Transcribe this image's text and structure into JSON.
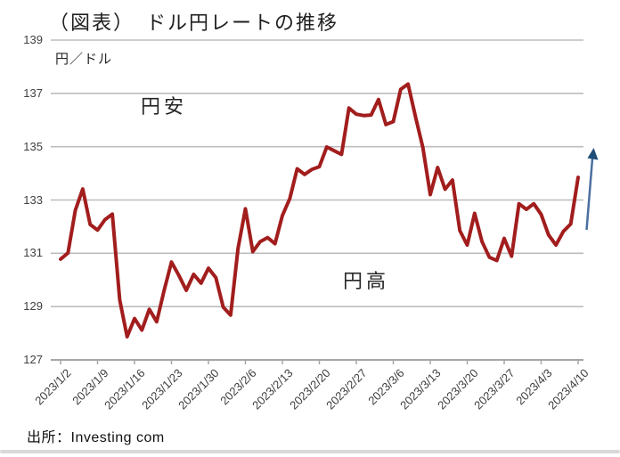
{
  "title": "（図表）　ドル円レートの推移",
  "unit_label": "円／ドル",
  "annotations": {
    "weak_yen": "円安",
    "strong_yen": "円高"
  },
  "source": "出所：Investing com",
  "trend_arrow": {
    "direction": "up",
    "stem_color": "#4a6fa0",
    "head_color": "#1f4e79"
  },
  "chart_data": {
    "type": "line",
    "title": "（図表）　ドル円レートの推移",
    "xlabel": "",
    "ylabel": "円／ドル",
    "ylim": [
      127,
      139
    ],
    "y_ticks": [
      127,
      129,
      131,
      133,
      135,
      137,
      139
    ],
    "grid": "horizontal",
    "grid_color": "#bdbdbd",
    "axis_color": "#a6a6a6",
    "legend": "none",
    "x_tick_labels": [
      "2023/1/2",
      "2023/1/9",
      "2023/1/16",
      "2023/1/23",
      "2023/1/30",
      "2023/2/6",
      "2023/2/13",
      "2023/2/20",
      "2023/2/27",
      "2023/3/6",
      "2023/3/13",
      "2023/3/20",
      "2023/3/27",
      "2023/4/3",
      "2023/4/10"
    ],
    "x_tick_every": 5,
    "series": [
      {
        "name": "ドル円レート",
        "color": "#a21d1d",
        "line_width": 4,
        "x": [
          "1/2",
          "1/3",
          "1/4",
          "1/5",
          "1/6",
          "1/9",
          "1/10",
          "1/11",
          "1/12",
          "1/13",
          "1/16",
          "1/17",
          "1/18",
          "1/19",
          "1/20",
          "1/23",
          "1/24",
          "1/25",
          "1/26",
          "1/27",
          "1/30",
          "1/31",
          "2/1",
          "2/2",
          "2/3",
          "2/6",
          "2/7",
          "2/8",
          "2/9",
          "2/10",
          "2/13",
          "2/14",
          "2/15",
          "2/16",
          "2/17",
          "2/20",
          "2/21",
          "2/22",
          "2/23",
          "2/24",
          "2/27",
          "2/28",
          "3/1",
          "3/2",
          "3/3",
          "3/6",
          "3/7",
          "3/8",
          "3/9",
          "3/10",
          "3/13",
          "3/14",
          "3/15",
          "3/16",
          "3/17",
          "3/20",
          "3/21",
          "3/22",
          "3/23",
          "3/24",
          "3/27",
          "3/28",
          "3/29",
          "3/30",
          "3/31",
          "4/3",
          "4/4",
          "4/5",
          "4/6",
          "4/7",
          "4/10"
        ],
        "values": [
          130.78,
          131.01,
          132.62,
          133.41,
          132.08,
          131.87,
          132.26,
          132.47,
          129.25,
          127.87,
          128.55,
          128.12,
          128.9,
          128.43,
          129.6,
          130.67,
          130.17,
          129.61,
          130.21,
          129.88,
          130.44,
          130.09,
          128.98,
          128.68,
          131.18,
          132.67,
          131.06,
          131.44,
          131.59,
          131.36,
          132.42,
          133.05,
          134.17,
          133.96,
          134.15,
          134.25,
          134.99,
          134.85,
          134.71,
          136.45,
          136.22,
          136.17,
          136.19,
          136.77,
          135.83,
          135.94,
          137.15,
          137.35,
          136.13,
          134.97,
          133.2,
          134.22,
          133.4,
          133.75,
          131.85,
          131.31,
          132.5,
          131.44,
          130.85,
          130.73,
          131.56,
          130.89,
          132.86,
          132.65,
          132.86,
          132.46,
          131.69,
          131.31,
          131.82,
          132.1,
          133.85
        ]
      }
    ]
  }
}
